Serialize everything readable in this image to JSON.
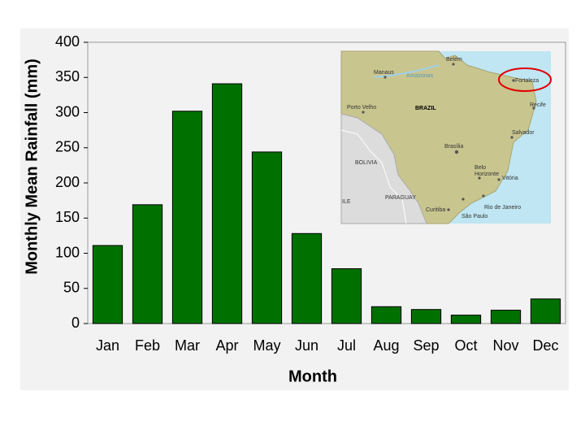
{
  "chart_data": {
    "type": "bar",
    "x_label": "Month",
    "y_label": "Monthly Mean Rainfall (mm)",
    "categories": [
      "Jan",
      "Feb",
      "Mar",
      "Apr",
      "May",
      "Jun",
      "Jul",
      "Aug",
      "Sep",
      "Oct",
      "Nov",
      "Dec"
    ],
    "values": [
      111,
      169,
      302,
      341,
      244,
      128,
      78,
      24,
      20,
      12,
      19,
      35
    ],
    "color": "#007000",
    "ylim": [
      0,
      400
    ],
    "yticks": [
      0,
      50,
      100,
      150,
      200,
      250,
      300,
      350,
      400
    ],
    "annotations": [
      "BRAZIL",
      "Belém",
      "Manaus",
      "Amazonas",
      "Fortaleza",
      "Porto Velho",
      "Recife",
      "Salvador",
      "Brasília",
      "BOLIVIA",
      "Belo",
      "Horizonte",
      "Vitória",
      "PARAGUAY",
      "Curitiba",
      "Rio de Janeiro",
      "São Paulo",
      "ILE"
    ]
  }
}
